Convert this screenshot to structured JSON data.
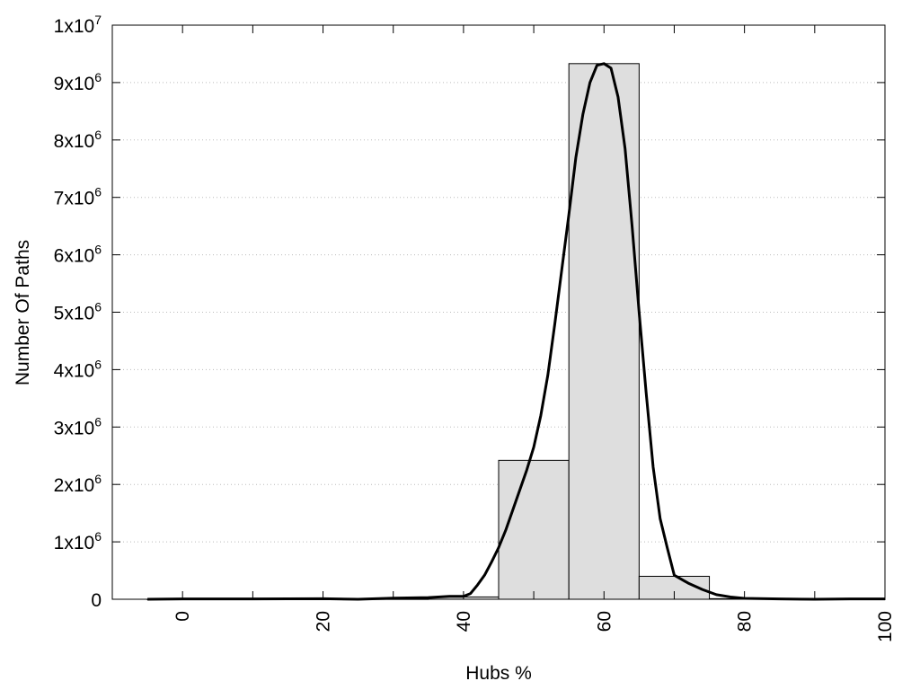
{
  "chart_data": {
    "type": "bar",
    "title": "",
    "xlabel": "Hubs %",
    "ylabel": "Number Of Paths",
    "xlim": [
      -10,
      100
    ],
    "ylim": [
      0,
      10000000
    ],
    "x_ticks": [
      0,
      20,
      40,
      60,
      80,
      100
    ],
    "y_ticks": [
      {
        "value": 0,
        "base": "0",
        "exp": ""
      },
      {
        "value": 1000000,
        "base": "1x10",
        "exp": "6"
      },
      {
        "value": 2000000,
        "base": "2x10",
        "exp": "6"
      },
      {
        "value": 3000000,
        "base": "3x10",
        "exp": "6"
      },
      {
        "value": 4000000,
        "base": "4x10",
        "exp": "6"
      },
      {
        "value": 5000000,
        "base": "5x10",
        "exp": "6"
      },
      {
        "value": 6000000,
        "base": "6x10",
        "exp": "6"
      },
      {
        "value": 7000000,
        "base": "7x10",
        "exp": "6"
      },
      {
        "value": 8000000,
        "base": "8x10",
        "exp": "6"
      },
      {
        "value": 9000000,
        "base": "9x10",
        "exp": "6"
      },
      {
        "value": 10000000,
        "base": "1x10",
        "exp": "7"
      }
    ],
    "grid": "horizontal dotted",
    "bins": [
      {
        "x0": -5,
        "x1": 5,
        "value": 0
      },
      {
        "x0": 5,
        "x1": 15,
        "value": 0
      },
      {
        "x0": 15,
        "x1": 25,
        "value": 0
      },
      {
        "x0": 25,
        "x1": 35,
        "value": 5000
      },
      {
        "x0": 35,
        "x1": 45,
        "value": 40000
      },
      {
        "x0": 45,
        "x1": 55,
        "value": 2420000
      },
      {
        "x0": 55,
        "x1": 65,
        "value": 9330000
      },
      {
        "x0": 65,
        "x1": 75,
        "value": 400000
      },
      {
        "x0": 75,
        "x1": 85,
        "value": 10000
      },
      {
        "x0": 85,
        "x1": 95,
        "value": 0
      },
      {
        "x0": 95,
        "x1": 100,
        "value": 0
      }
    ],
    "curve": {
      "x": [
        -5,
        0,
        10,
        20,
        25,
        30,
        35,
        38,
        40,
        41,
        42,
        43,
        44,
        45,
        46,
        47,
        48,
        49,
        50,
        51,
        52,
        53,
        54,
        55,
        56,
        57,
        58,
        59,
        60,
        61,
        62,
        63,
        64,
        65,
        66,
        67,
        68,
        69,
        70,
        72,
        74,
        76,
        78,
        80,
        85,
        90,
        95,
        100
      ],
      "y": [
        0,
        5000,
        5000,
        10000,
        0,
        20000,
        30000,
        50000,
        50000,
        100000,
        250000,
        420000,
        650000,
        900000,
        1200000,
        1550000,
        1900000,
        2250000,
        2650000,
        3200000,
        3900000,
        4800000,
        5750000,
        6700000,
        7700000,
        8450000,
        9000000,
        9300000,
        9330000,
        9250000,
        8750000,
        7850000,
        6500000,
        5000000,
        3600000,
        2300000,
        1400000,
        900000,
        420000,
        280000,
        170000,
        80000,
        40000,
        15000,
        5000,
        0,
        5000,
        5000
      ]
    },
    "bar_fill": "#dedede",
    "bar_stroke": "#000000",
    "curve_color": "#000000"
  }
}
